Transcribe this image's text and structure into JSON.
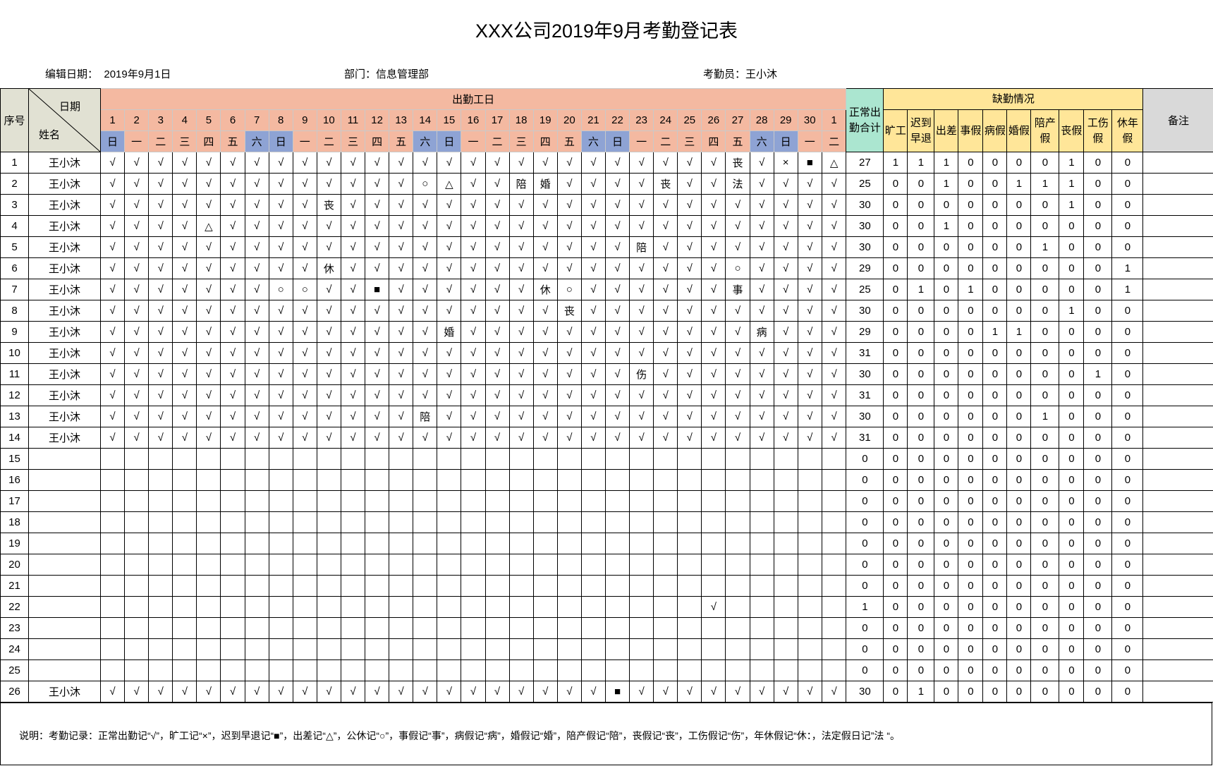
{
  "title": "XXX公司2019年9月考勤登记表",
  "info": {
    "edit_date_label": "编辑日期：",
    "edit_date": "2019年9月1日",
    "dept_label": "部门：",
    "dept": "信息管理部",
    "clerk_label": "考勤员：",
    "clerk": "王小沐"
  },
  "header": {
    "seq": "序号",
    "date": "日期",
    "name": "姓名",
    "workdays": "出勤工日",
    "total": "正常出勤合计",
    "absence": "缺勤情况",
    "remark": "备注",
    "absence_cols": [
      "旷工",
      "迟到早退",
      "出差",
      "事假",
      "病假",
      "婚假",
      "陪产假",
      "丧假",
      "工伤假",
      "休年假"
    ],
    "days": [
      "1",
      "2",
      "3",
      "4",
      "5",
      "6",
      "7",
      "8",
      "9",
      "10",
      "11",
      "12",
      "13",
      "14",
      "15",
      "16",
      "17",
      "18",
      "19",
      "20",
      "21",
      "22",
      "23",
      "24",
      "25",
      "26",
      "27",
      "28",
      "29",
      "30",
      "1"
    ],
    "weekdays": [
      "日",
      "一",
      "二",
      "三",
      "四",
      "五",
      "六",
      "日",
      "一",
      "二",
      "三",
      "四",
      "五",
      "六",
      "日",
      "一",
      "二",
      "三",
      "四",
      "五",
      "六",
      "日",
      "一",
      "二",
      "三",
      "四",
      "五",
      "六",
      "日",
      "一",
      "二"
    ]
  },
  "colors": {
    "header": "#F4B9A1",
    "weekend": "#8EA3D4",
    "total": "#ABE6D0",
    "absence": "#FFE699",
    "remark": "#D9D9D9",
    "name_header": "#E1E1D3"
  },
  "rows": [
    {
      "no": "1",
      "name": "王小沐",
      "marks": "√√√√√√√√√√√√√√√√√√√√√√√√√√丧√×■△",
      "total": "27",
      "abs": [
        "1",
        "1",
        "1",
        "0",
        "0",
        "0",
        "0",
        "1",
        "0",
        "0"
      ]
    },
    {
      "no": "2",
      "name": "王小沐",
      "marks": "√√√√√√√√√√√√√○△√√陪婚√√√√丧√√法√√√√",
      "total": "25",
      "abs": [
        "0",
        "0",
        "1",
        "0",
        "0",
        "1",
        "1",
        "1",
        "0",
        "0"
      ]
    },
    {
      "no": "3",
      "name": "王小沐",
      "marks": "√√√√√√√√√丧√√√√√√√√√√√√√√√√√√√√√",
      "total": "30",
      "abs": [
        "0",
        "0",
        "0",
        "0",
        "0",
        "0",
        "0",
        "1",
        "0",
        "0"
      ]
    },
    {
      "no": "4",
      "name": "王小沐",
      "marks": "√√√√△√√√√√√√√√√√√√√√√√√√√√√√√√√",
      "total": "30",
      "abs": [
        "0",
        "0",
        "1",
        "0",
        "0",
        "0",
        "0",
        "0",
        "0",
        "0"
      ]
    },
    {
      "no": "5",
      "name": "王小沐",
      "marks": "√√√√√√√√√√√√√√√√√√√√√√陪√√√√√√√√",
      "total": "30",
      "abs": [
        "0",
        "0",
        "0",
        "0",
        "0",
        "0",
        "1",
        "0",
        "0",
        "0"
      ]
    },
    {
      "no": "6",
      "name": "王小沐",
      "marks": "√√√√√√√√√休√√√√√√√√√√√√√√√√○√√√√",
      "total": "29",
      "abs": [
        "0",
        "0",
        "0",
        "0",
        "0",
        "0",
        "0",
        "0",
        "0",
        "1"
      ]
    },
    {
      "no": "7",
      "name": "王小沐",
      "marks": "√√√√√√√○○√√■√√√√√√休○√√√√√√事√√√√",
      "total": "25",
      "abs": [
        "0",
        "1",
        "0",
        "1",
        "0",
        "0",
        "0",
        "0",
        "0",
        "1"
      ]
    },
    {
      "no": "8",
      "name": "王小沐",
      "marks": "√√√√√√√√√√√√√√√√√√√丧√√√√√√√√√√√",
      "total": "30",
      "abs": [
        "0",
        "0",
        "0",
        "0",
        "0",
        "0",
        "0",
        "1",
        "0",
        "0"
      ]
    },
    {
      "no": "9",
      "name": "王小沐",
      "marks": "√√√√√√√√√√√√√√婚√√√√√√√√√√√√病√√√",
      "total": "29",
      "abs": [
        "0",
        "0",
        "0",
        "0",
        "1",
        "1",
        "0",
        "0",
        "0",
        "0"
      ]
    },
    {
      "no": "10",
      "name": "王小沐",
      "marks": "√√√√√√√√√√√√√√√√√√√√√√√√√√√√√√√",
      "total": "31",
      "abs": [
        "0",
        "0",
        "0",
        "0",
        "0",
        "0",
        "0",
        "0",
        "0",
        "0"
      ]
    },
    {
      "no": "11",
      "name": "王小沐",
      "marks": "√√√√√√√√√√√√√√√√√√√√√√伤√√√√√√√√",
      "total": "30",
      "abs": [
        "0",
        "0",
        "0",
        "0",
        "0",
        "0",
        "0",
        "0",
        "1",
        "0"
      ]
    },
    {
      "no": "12",
      "name": "王小沐",
      "marks": "√√√√√√√√√√√√√√√√√√√√√√√√√√√√√√√",
      "total": "31",
      "abs": [
        "0",
        "0",
        "0",
        "0",
        "0",
        "0",
        "0",
        "0",
        "0",
        "0"
      ]
    },
    {
      "no": "13",
      "name": "王小沐",
      "marks": "√√√√√√√√√√√√√陪√√√√√√√√√√√√√√√√√",
      "total": "30",
      "abs": [
        "0",
        "0",
        "0",
        "0",
        "0",
        "0",
        "1",
        "0",
        "0",
        "0"
      ]
    },
    {
      "no": "14",
      "name": "王小沐",
      "marks": "√√√√√√√√√√√√√√√√√√√√√√√√√√√√√√√",
      "total": "31",
      "abs": [
        "0",
        "0",
        "0",
        "0",
        "0",
        "0",
        "0",
        "0",
        "0",
        "0"
      ]
    },
    {
      "no": "15",
      "name": "",
      "marks": "",
      "total": "0",
      "abs": [
        "0",
        "0",
        "0",
        "0",
        "0",
        "0",
        "0",
        "0",
        "0",
        "0"
      ]
    },
    {
      "no": "16",
      "name": "",
      "marks": "",
      "total": "0",
      "abs": [
        "0",
        "0",
        "0",
        "0",
        "0",
        "0",
        "0",
        "0",
        "0",
        "0"
      ]
    },
    {
      "no": "17",
      "name": "",
      "marks": "",
      "total": "0",
      "abs": [
        "0",
        "0",
        "0",
        "0",
        "0",
        "0",
        "0",
        "0",
        "0",
        "0"
      ]
    },
    {
      "no": "18",
      "name": "",
      "marks": "",
      "total": "0",
      "abs": [
        "0",
        "0",
        "0",
        "0",
        "0",
        "0",
        "0",
        "0",
        "0",
        "0"
      ]
    },
    {
      "no": "19",
      "name": "",
      "marks": "",
      "total": "0",
      "abs": [
        "0",
        "0",
        "0",
        "0",
        "0",
        "0",
        "0",
        "0",
        "0",
        "0"
      ]
    },
    {
      "no": "20",
      "name": "",
      "marks": "",
      "total": "0",
      "abs": [
        "0",
        "0",
        "0",
        "0",
        "0",
        "0",
        "0",
        "0",
        "0",
        "0"
      ]
    },
    {
      "no": "21",
      "name": "",
      "marks": "",
      "total": "0",
      "abs": [
        "0",
        "0",
        "0",
        "0",
        "0",
        "0",
        "0",
        "0",
        "0",
        "0"
      ]
    },
    {
      "no": "22",
      "name": "",
      "marks": "                         √     ",
      "total": "1",
      "abs": [
        "0",
        "0",
        "0",
        "0",
        "0",
        "0",
        "0",
        "0",
        "0",
        "0"
      ]
    },
    {
      "no": "23",
      "name": "",
      "marks": "",
      "total": "0",
      "abs": [
        "0",
        "0",
        "0",
        "0",
        "0",
        "0",
        "0",
        "0",
        "0",
        "0"
      ]
    },
    {
      "no": "24",
      "name": "",
      "marks": "",
      "total": "0",
      "abs": [
        "0",
        "0",
        "0",
        "0",
        "0",
        "0",
        "0",
        "0",
        "0",
        "0"
      ]
    },
    {
      "no": "25",
      "name": "",
      "marks": "",
      "total": "0",
      "abs": [
        "0",
        "0",
        "0",
        "0",
        "0",
        "0",
        "0",
        "0",
        "0",
        "0"
      ]
    },
    {
      "no": "26",
      "name": "王小沐",
      "marks": "√√√√√√√√√√√√√√√√√√√√√■√√√√√√√√√",
      "total": "30",
      "abs": [
        "0",
        "1",
        "0",
        "0",
        "0",
        "0",
        "0",
        "0",
        "0",
        "0"
      ]
    }
  ],
  "note": "说明：考勤记录：正常出勤记“√”，旷工记“×”，迟到早退记“■”，出差记“△”，公休记“○”，事假记“事”，病假记“病”，婚假记“婚”，陪产假记“陪”，丧假记“丧”，工伤假记“伤”，年休假记“休：，法定假日记”法 “。"
}
